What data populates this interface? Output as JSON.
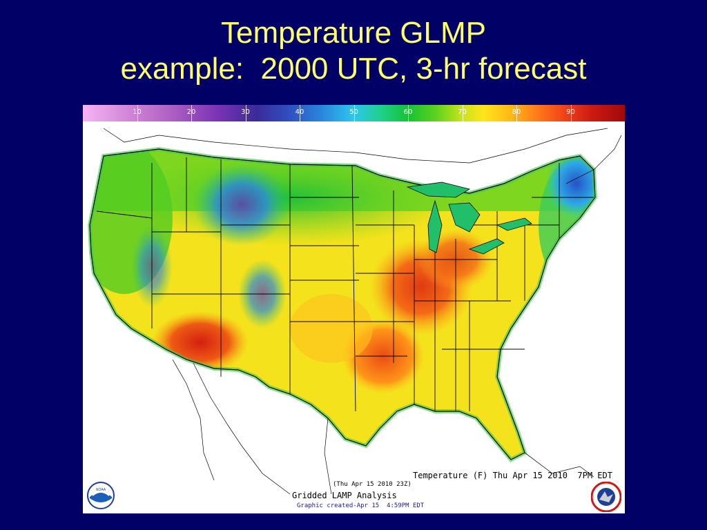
{
  "slide": {
    "title_line1": "Temperature GLMP",
    "title_line2": "example:  2000 UTC, 3-hr forecast"
  },
  "colorbar": {
    "ticks": [
      "10",
      "20",
      "30",
      "40",
      "50",
      "60",
      "70",
      "80",
      "90"
    ],
    "range": [
      0,
      100
    ]
  },
  "map": {
    "annotation_main": "Temperature (F) Thu Apr 15 2010  7PM EDT",
    "annotation_time": "(Thu Apr 15 2010 23Z)",
    "product_name": "Gridded LAMP Analysis",
    "created_text": "Graphic created-Apr 15  4:59PM EDT",
    "logos": [
      "noaa-logo",
      "nws-logo"
    ],
    "logo_left_text": "NOAA"
  }
}
